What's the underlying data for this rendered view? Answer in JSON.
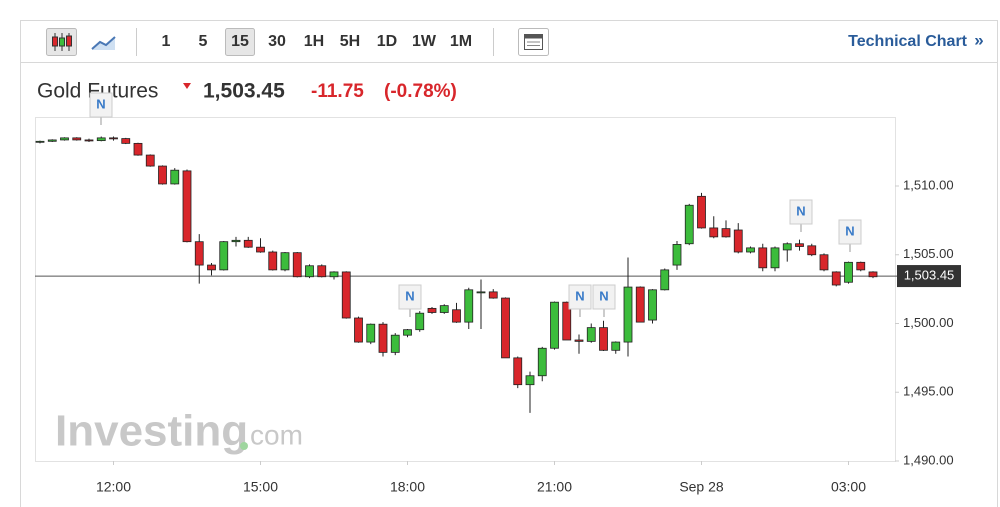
{
  "chart_data": {
    "type": "candlestick",
    "title": "Gold Futures",
    "change": "-11.75",
    "change_percent": "(-0.78%)",
    "last_price": {
      "value": 1503.45,
      "label": "1,503.45"
    },
    "toolbar": [
      "1",
      "5",
      "15",
      "30",
      "1H",
      "5H",
      "1D",
      "1W",
      "1M"
    ],
    "selected_interval": "15",
    "link": "Technical Chart",
    "link_arrow": "»",
    "watermark": "Investing",
    "watermark_suffix": "com",
    "news": [
      "N",
      "N",
      "N",
      "N",
      "N",
      "N"
    ],
    "up_color": "#3cbc3c",
    "down_color": "#d8262b",
    "grid": false,
    "categories": [
      null,
      null,
      null,
      null,
      null,
      null,
      "12:00",
      null,
      null,
      null,
      null,
      null,
      null,
      null,
      null,
      null,
      null,
      null,
      "15:00",
      null,
      null,
      null,
      null,
      null,
      null,
      null,
      null,
      null,
      null,
      null,
      "18:00",
      null,
      null,
      null,
      null,
      null,
      null,
      null,
      null,
      null,
      null,
      null,
      "21:00",
      null,
      null,
      null,
      null,
      null,
      null,
      null,
      null,
      null,
      null,
      null,
      "Sep 28",
      null,
      null,
      null,
      null,
      null,
      null,
      null,
      null,
      null,
      null,
      null,
      "03:00",
      null,
      null
    ],
    "open": [
      1513.2,
      1513.25,
      1513.35,
      1513.5,
      1513.35,
      1513.3,
      1513.5,
      1513.45,
      1513.1,
      1512.25,
      1511.45,
      1510.15,
      1511.1,
      1505.95,
      1504.25,
      1503.9,
      1505.95,
      1506.05,
      1505.55,
      1505.2,
      1503.9,
      1505.15,
      1503.4,
      1504.2,
      1503.4,
      1503.75,
      1500.4,
      1498.65,
      1499.95,
      1497.9,
      1499.15,
      1499.55,
      1501.1,
      1500.8,
      1501.0,
      1500.1,
      1502.3,
      1502.3,
      1501.85,
      1497.5,
      1495.55,
      1496.2,
      1498.2,
      1501.55,
      1498.8,
      1498.7,
      1499.7,
      1498.05,
      1498.65,
      1502.65,
      1500.25,
      1502.45,
      1504.25,
      1505.8,
      1509.25,
      1506.95,
      1506.9,
      1506.8,
      1505.2,
      1505.5,
      1504.05,
      1505.35,
      1505.8,
      1505.65,
      1505.0,
      1503.75,
      1503.0,
      1504.45,
      1503.75
    ],
    "high": [
      1513.3,
      1513.4,
      1513.55,
      1513.55,
      1513.45,
      1513.6,
      1513.6,
      1513.5,
      1513.15,
      1512.3,
      1511.5,
      1511.3,
      1511.2,
      1506.5,
      1504.4,
      1506.0,
      1506.3,
      1506.3,
      1506.2,
      1505.3,
      1505.2,
      1505.2,
      1504.3,
      1504.3,
      1503.8,
      1503.8,
      1500.5,
      1500.0,
      1500.1,
      1499.3,
      1499.6,
      1500.9,
      1501.2,
      1501.4,
      1501.5,
      1502.6,
      1503.2,
      1502.5,
      1501.9,
      1497.6,
      1496.5,
      1498.3,
      1501.6,
      1501.6,
      1499.2,
      1500.0,
      1500.2,
      1498.7,
      1504.8,
      1502.7,
      1502.5,
      1504.0,
      1506.0,
      1508.7,
      1509.5,
      1507.8,
      1507.5,
      1507.3,
      1505.6,
      1505.8,
      1505.6,
      1505.9,
      1506.1,
      1505.8,
      1505.1,
      1503.8,
      1504.5,
      1504.5,
      1503.8
    ],
    "low": [
      1513.1,
      1513.2,
      1513.3,
      1513.3,
      1513.2,
      1513.25,
      1513.3,
      1513.05,
      1512.2,
      1511.4,
      1510.1,
      1510.1,
      1505.9,
      1502.9,
      1503.5,
      1503.85,
      1505.6,
      1505.5,
      1505.15,
      1503.85,
      1503.8,
      1503.35,
      1503.3,
      1503.35,
      1503.2,
      1500.35,
      1498.6,
      1498.5,
      1497.6,
      1497.7,
      1499.0,
      1499.4,
      1500.7,
      1500.7,
      1500.05,
      1499.6,
      1499.6,
      1501.8,
      1497.5,
      1495.3,
      1493.5,
      1495.8,
      1498.1,
      1498.8,
      1497.8,
      1498.6,
      1498.0,
      1497.8,
      1497.6,
      1500.1,
      1500.0,
      1502.4,
      1503.9,
      1505.7,
      1506.9,
      1506.2,
      1506.25,
      1505.1,
      1505.1,
      1503.8,
      1503.8,
      1504.5,
      1505.3,
      1504.9,
      1503.8,
      1502.7,
      1502.9,
      1503.8,
      1503.3
    ],
    "close": [
      1513.25,
      1513.35,
      1513.5,
      1513.35,
      1513.3,
      1513.5,
      1513.45,
      1513.1,
      1512.25,
      1511.45,
      1510.15,
      1511.15,
      1505.95,
      1504.25,
      1503.9,
      1505.95,
      1506.05,
      1505.55,
      1505.2,
      1503.9,
      1505.15,
      1503.4,
      1504.2,
      1503.4,
      1503.75,
      1500.4,
      1498.65,
      1499.95,
      1497.9,
      1499.15,
      1499.55,
      1500.75,
      1500.8,
      1501.3,
      1500.1,
      1502.45,
      1502.3,
      1501.85,
      1497.5,
      1495.55,
      1496.2,
      1498.2,
      1501.55,
      1498.8,
      1498.7,
      1499.7,
      1498.05,
      1498.65,
      1502.65,
      1500.1,
      1502.45,
      1503.9,
      1505.75,
      1508.6,
      1506.95,
      1506.3,
      1506.3,
      1505.2,
      1505.5,
      1504.05,
      1505.5,
      1505.8,
      1505.6,
      1505.0,
      1503.9,
      1502.8,
      1504.45,
      1503.9,
      1503.4
    ],
    "ylim": [
      1490,
      1515
    ],
    "yticks": [
      {
        "value": 1490,
        "label": "1,490.00"
      },
      {
        "value": 1495,
        "label": "1,495.00"
      },
      {
        "value": 1500,
        "label": "1,500.00"
      },
      {
        "value": 1505,
        "label": "1,505.00"
      },
      {
        "value": 1510,
        "label": "1,510.00"
      }
    ]
  }
}
